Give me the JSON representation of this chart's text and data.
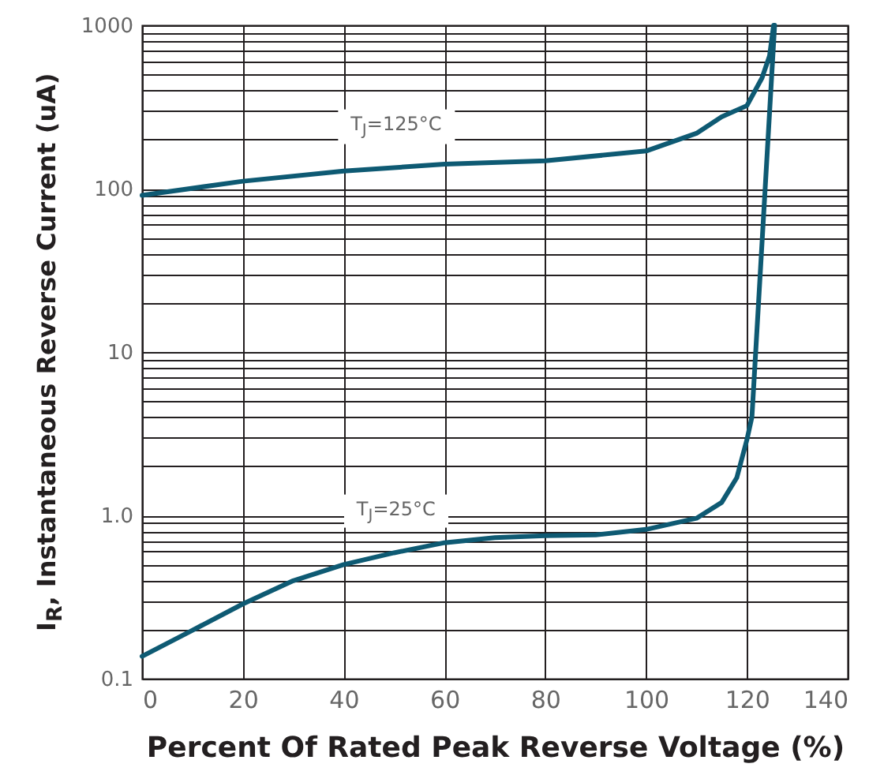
{
  "chart_data": {
    "type": "line",
    "xlabel": "Percent Of Rated Peak Reverse Voltage (%)",
    "ylabel": "I$_{R}$, Instantaneous Reverse Current (uA)",
    "series": [
      {
        "name": "T$_{J}$=125°C",
        "color": "#0e5a73",
        "x": [
          0,
          20,
          40,
          60,
          80,
          100,
          110,
          115,
          120,
          123,
          124.5,
          125.3
        ],
        "values": [
          91,
          111,
          128,
          141,
          148,
          170,
          218,
          275,
          322,
          476,
          650,
          1000
        ]
      },
      {
        "name": "T$_{J}$=25°C",
        "color": "#0e5a73",
        "x": [
          0,
          10,
          20,
          30,
          40,
          50,
          60,
          70,
          80,
          90,
          100,
          110,
          115,
          118,
          120,
          121,
          125.5
        ],
        "values": [
          0.137,
          0.198,
          0.287,
          0.398,
          0.5,
          0.59,
          0.68,
          0.73,
          0.75,
          0.76,
          0.82,
          0.96,
          1.2,
          1.7,
          2.9,
          4,
          1000
        ]
      }
    ],
    "xlim": [
      0,
      140
    ],
    "xticks": [
      0,
      20,
      40,
      60,
      80,
      100,
      120,
      140
    ],
    "ylim": [
      0.1,
      1000
    ],
    "yticks": [
      0.1,
      {
        "value": 0.2,
        "label": null
      },
      {
        "value": 0.3,
        "label": null
      },
      {
        "value": 0.4,
        "label": null
      },
      {
        "value": 0.5,
        "label": null
      },
      {
        "value": 0.6,
        "label": null
      },
      {
        "value": 0.7,
        "label": null
      },
      {
        "value": 0.8,
        "label": null
      },
      {
        "value": 0.9,
        "label": null
      },
      {
        "value": 1,
        "label": "1.0"
      },
      {
        "value": 2,
        "label": null
      },
      {
        "value": 3,
        "label": null
      },
      {
        "value": 4,
        "label": null
      },
      {
        "value": 5,
        "label": null
      },
      {
        "value": 6,
        "label": null
      },
      {
        "value": 7,
        "label": null
      },
      {
        "value": 8,
        "label": null
      },
      {
        "value": 9,
        "label": null
      },
      10,
      {
        "value": 20,
        "label": null
      },
      {
        "value": 30,
        "label": null
      },
      {
        "value": 40,
        "label": null
      },
      {
        "value": 50,
        "label": null
      },
      {
        "value": 60,
        "label": null
      },
      {
        "value": 70,
        "label": null
      },
      {
        "value": 80,
        "label": null
      },
      {
        "value": 90,
        "label": null
      },
      100,
      {
        "value": 200,
        "label": null
      },
      {
        "value": 300,
        "label": null
      },
      {
        "value": 400,
        "label": null
      },
      {
        "value": 500,
        "label": null
      },
      {
        "value": 600,
        "label": null
      },
      {
        "value": 700,
        "label": null
      },
      {
        "value": 800,
        "label": null
      },
      {
        "value": 900,
        "label": null
      },
      1000
    ],
    "log": "y",
    "grid": true,
    "line_style": "solid",
    "marker": "none"
  }
}
